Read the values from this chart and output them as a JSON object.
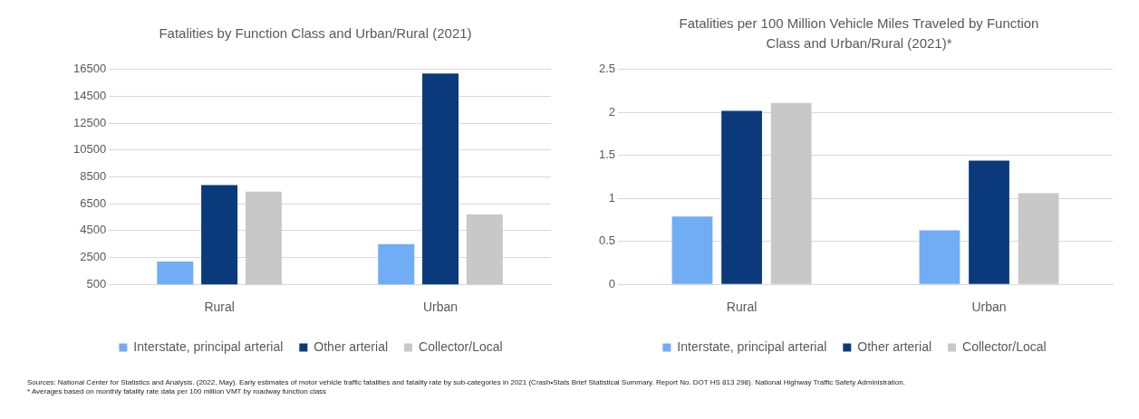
{
  "chart_data": [
    {
      "type": "bar",
      "title": "Fatalities by Function Class and Urban/Rural (2021)",
      "categories": [
        "Rural",
        "Urban"
      ],
      "series": [
        {
          "name": "Interstate, principal arterial",
          "color": "#70adf5",
          "values": [
            2200,
            3500
          ]
        },
        {
          "name": "Other arterial",
          "color": "#0a3a7c",
          "values": [
            7900,
            16200
          ]
        },
        {
          "name": "Collector/Local",
          "color": "#c8c8c8",
          "values": [
            7400,
            5700
          ]
        }
      ],
      "ylim": [
        500,
        16500
      ],
      "yticks": [
        500,
        2500,
        4500,
        6500,
        8500,
        10500,
        12500,
        14500,
        16500
      ],
      "grid": "y",
      "legend": "bottom"
    },
    {
      "type": "bar",
      "title": "Fatalities per 100 Million Vehicle Miles Traveled by Function Class and Urban/Rural (2021)*",
      "categories": [
        "Rural",
        "Urban"
      ],
      "series": [
        {
          "name": "Interstate, principal arterial",
          "color": "#70adf5",
          "values": [
            0.79,
            0.63
          ]
        },
        {
          "name": "Other arterial",
          "color": "#0a3a7c",
          "values": [
            2.02,
            1.44
          ]
        },
        {
          "name": "Collector/Local",
          "color": "#c8c8c8",
          "values": [
            2.11,
            1.06
          ]
        }
      ],
      "ylim": [
        0,
        2.5
      ],
      "yticks": [
        0,
        0.5,
        1,
        1.5,
        2,
        2.5
      ],
      "grid": "y",
      "legend": "bottom",
      "annotations": [
        "Sources: National Center for Statistics and Analysis. (2022, May). Early estimates of motor vehicle traffic fatalities and fatality rate by sub-categories in 2021 (Crash•Stats Brief Statistical Summary. Report No. DOT HS 813 298). National Highway Traffic Safety Administration.",
        "* Averages based on monthly fatality rate data per 100 million VMT by roadway function class"
      ]
    }
  ]
}
